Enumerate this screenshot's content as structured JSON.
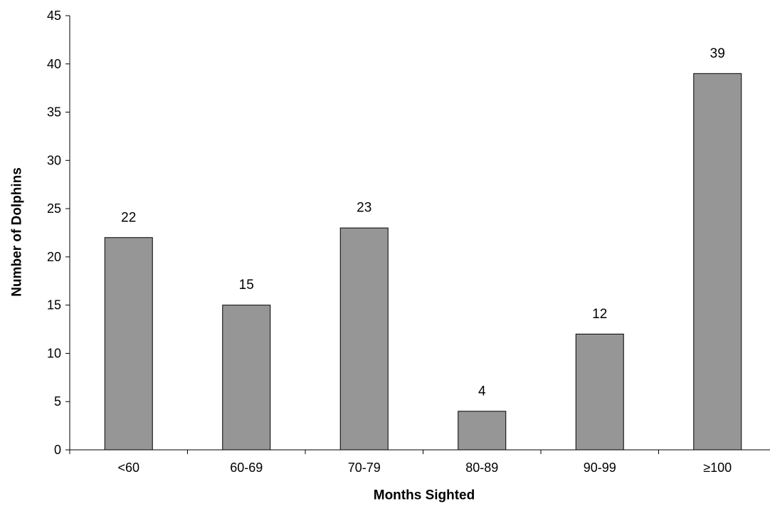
{
  "chart_data": {
    "type": "bar",
    "title": "",
    "xlabel": "Months Sighted",
    "ylabel": "Number of Dolphins",
    "categories": [
      "<60",
      "60-69",
      "70-79",
      "80-89",
      "90-99",
      "≥100"
    ],
    "values": [
      22,
      15,
      23,
      4,
      12,
      39
    ],
    "data_labels": [
      "22",
      "15",
      "23",
      "4",
      "12",
      "39"
    ],
    "ylim": [
      0,
      45
    ],
    "yticks": [
      0,
      5,
      10,
      15,
      20,
      25,
      30,
      35,
      40,
      45
    ],
    "grid": false,
    "legend": "none",
    "colors": {
      "bar_fill": "#969696",
      "bar_stroke": "#000000",
      "axis": "#000000"
    }
  }
}
